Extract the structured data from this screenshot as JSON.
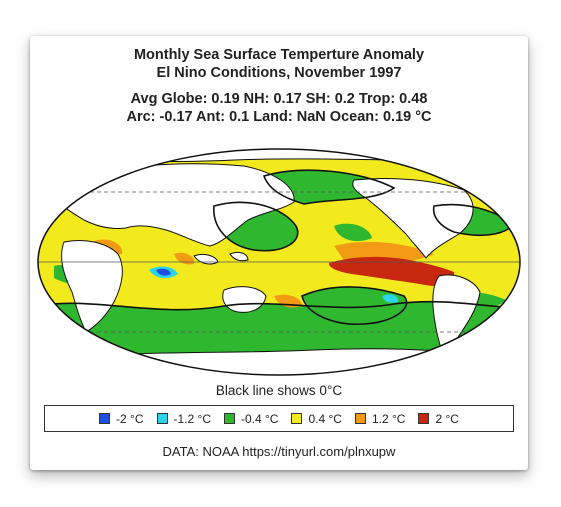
{
  "header": {
    "title": "Monthly Sea Surface Temperture Anomaly",
    "subtitle": "El Nino Conditions, November 1997",
    "stats_line1": "Avg Globe: 0.19  NH: 0.17  SH: 0.2  Trop: 0.48",
    "stats_line2": "Arc: -0.17  Ant: 0.1  Land: NaN Ocean: 0.19 °C"
  },
  "map": {
    "projection": "mollweide",
    "colors": {
      "land": "#ffffff",
      "anom_neg2": "#1f4fe0",
      "anom_neg12": "#2bd4e8",
      "anom_neg04": "#2fb82f",
      "anom_pos04": "#f2ea1c",
      "anom_pos12": "#f29a14",
      "anom_pos2": "#c8280f",
      "zero_line": "#111111",
      "graticule": "#555555"
    }
  },
  "annotation": "Black line shows 0°C",
  "legend": {
    "items": [
      {
        "label": "-2 °C",
        "color": "#1f4fe0"
      },
      {
        "label": "-1.2 °C",
        "color": "#2bd4e8"
      },
      {
        "label": "-0.4 °C",
        "color": "#2fb82f"
      },
      {
        "label": "0.4 °C",
        "color": "#f2ea1c"
      },
      {
        "label": "1.2 °C",
        "color": "#f29a14"
      },
      {
        "label": "2 °C",
        "color": "#c8280f"
      }
    ]
  },
  "footer": {
    "source": "DATA: NOAA https://tinyurl.com/plnxupw"
  }
}
